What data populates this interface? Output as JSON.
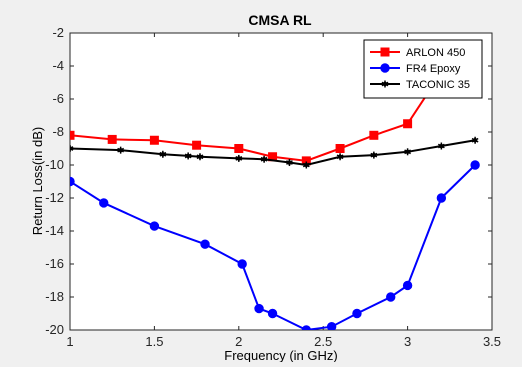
{
  "chart_data": {
    "type": "line",
    "title": "CMSA RL",
    "xlabel": "Frequency (in GHz)",
    "ylabel": "Return Loss(in dB)",
    "xlim": [
      1,
      3.5
    ],
    "ylim": [
      -20,
      -2
    ],
    "x_ticks": [
      1,
      1.5,
      2,
      2.5,
      3,
      3.5
    ],
    "x_tick_labels": [
      "1",
      "1.5",
      "2",
      "2.5",
      "3",
      "3.5"
    ],
    "y_ticks": [
      -20,
      -18,
      -16,
      -14,
      -12,
      -10,
      -8,
      -6,
      -4,
      -2
    ],
    "y_tick_labels": [
      "-20",
      "-18",
      "-16",
      "-14",
      "-12",
      "-10",
      "-8",
      "-6",
      "-4",
      "-2"
    ],
    "grid": false,
    "legend_position": "top-right",
    "series": [
      {
        "name": "ARLON 450",
        "color": "#ff0000",
        "marker": "square",
        "x": [
          1,
          1.25,
          1.5,
          1.75,
          2,
          2.2,
          2.4,
          2.6,
          2.8,
          3,
          3.2
        ],
        "y": [
          -8.2,
          -8.45,
          -8.5,
          -8.8,
          -9.0,
          -9.5,
          -9.75,
          -9.0,
          -8.2,
          -7.5,
          -4.4
        ]
      },
      {
        "name": "FR4 Epoxy",
        "color": "#0000ff",
        "marker": "circle",
        "x": [
          1,
          1.2,
          1.5,
          1.8,
          2.02,
          2.12,
          2.2,
          2.4,
          2.55,
          2.7,
          2.9,
          3.0,
          3.2,
          3.4
        ],
        "y": [
          -11.0,
          -12.3,
          -13.7,
          -14.8,
          -16.0,
          -18.7,
          -19.0,
          -20.0,
          -19.8,
          -19.0,
          -18.0,
          -17.3,
          -12.0,
          -10.0
        ]
      },
      {
        "name": "TACONIC 35",
        "color": "#000000",
        "marker": "asterisk",
        "x": [
          1,
          1.3,
          1.55,
          1.7,
          1.77,
          2,
          2.15,
          2.3,
          2.4,
          2.6,
          2.8,
          3,
          3.2,
          3.4
        ],
        "y": [
          -9.0,
          -9.1,
          -9.35,
          -9.45,
          -9.5,
          -9.6,
          -9.65,
          -9.85,
          -10.0,
          -9.5,
          -9.4,
          -9.2,
          -8.85,
          -8.5
        ]
      }
    ]
  }
}
